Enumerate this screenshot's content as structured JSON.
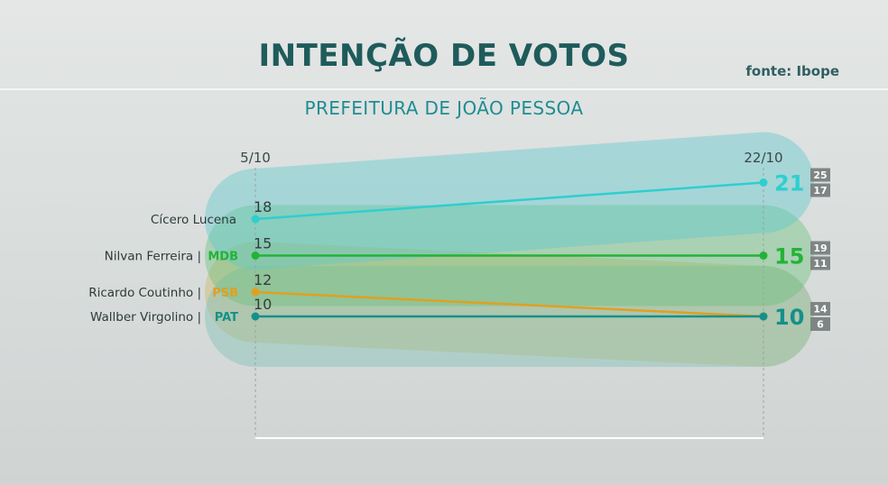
{
  "header": {
    "title": "INTENÇÃO DE VOTOS",
    "source": "fonte: Ibope",
    "subtitle": "PREFEITURA DE JOÃO PESSOA"
  },
  "chart_data": {
    "type": "line",
    "x": [
      "5/10",
      "22/10"
    ],
    "series": [
      {
        "name": "Cícero Lucena",
        "party": "",
        "values": [
          18,
          21
        ],
        "range": [
          25,
          17
        ],
        "color": "#2ecfcf",
        "band_color": "#5cc8cc"
      },
      {
        "name": "Nilvan Ferreira",
        "party": "MDB",
        "values": [
          15,
          15
        ],
        "range": [
          19,
          11
        ],
        "color": "#22b336",
        "band_color": "#69c07a"
      },
      {
        "name": "Ricardo Coutinho",
        "party": "PSB",
        "values": [
          12,
          10
        ],
        "range": [
          14,
          6
        ],
        "color": "#e0a020",
        "band_color": "#c8b86a"
      },
      {
        "name": "Wallber Virgolino",
        "party": "PAT",
        "values": [
          10,
          10
        ],
        "range": [
          14,
          6
        ],
        "color": "#14908a",
        "band_color": "#7ec2b4"
      }
    ]
  }
}
